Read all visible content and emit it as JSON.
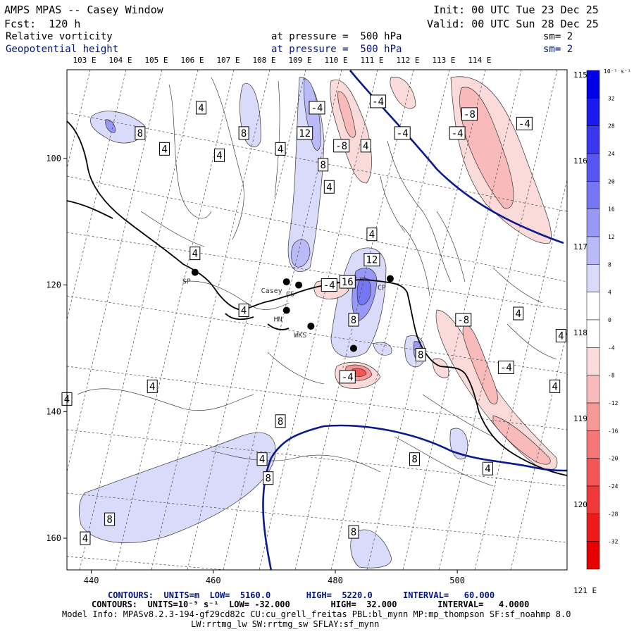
{
  "header": {
    "model_title": "AMPS MPAS -- Casey Window",
    "forecast": "Fcst:  120 h",
    "init": "Init: 00 UTC Tue 23 Dec 25",
    "valid": "Valid: 00 UTC Sun 28 Dec 25",
    "field1": {
      "name": "Relative vorticity",
      "level": "at pressure =  500 hPa",
      "smooth": "sm= 2"
    },
    "field2": {
      "name": "Geopotential height",
      "level": "at pressure =  500 hPa",
      "smooth": "sm= 2"
    }
  },
  "colors": {
    "blue_text": "#00137f",
    "height_contour": "#0a1a8c",
    "coast": "#000000"
  },
  "chart_data": {
    "type": "map-contour",
    "x_axis": {
      "ticks": [
        "440",
        "460",
        "480",
        "500"
      ],
      "range": [
        436,
        518
      ]
    },
    "y_axis": {
      "ticks": [
        "100",
        "120",
        "140",
        "160"
      ],
      "range": [
        86,
        165
      ]
    },
    "lon_labels_top": [
      "103 E",
      "104 E",
      "105 E",
      "106 E",
      "107 E",
      "108 E",
      "109 E",
      "110 E",
      "111 E",
      "112 E",
      "113 E",
      "114 E"
    ],
    "lon_labels_right": [
      "115 E",
      "116 E",
      "117 E",
      "118 E",
      "119 E",
      "120 E",
      "121 E"
    ],
    "colorbar": {
      "units_label": "10⁻⁵ s⁻¹",
      "levels": [
        36,
        32,
        28,
        24,
        20,
        16,
        12,
        8,
        4,
        0,
        -4,
        -8,
        -12,
        -16,
        -20,
        -24,
        -28,
        -32,
        -36
      ],
      "tick_labels": [
        "32",
        "28",
        "24",
        "20",
        "16",
        "12",
        "8",
        "4",
        "0",
        "-4",
        "-8",
        "-12",
        "-16",
        "-20",
        "-24",
        "-28",
        "-32"
      ],
      "colors": [
        "#0000e8",
        "#1a1aee",
        "#3838f0",
        "#5656f2",
        "#7676f4",
        "#9898f6",
        "#babaf8",
        "#dadafb",
        "#ffffff",
        "#ffffff",
        "#fbdada",
        "#f8baba",
        "#f69898",
        "#f47676",
        "#f25656",
        "#f03838",
        "#ee1a1a",
        "#e80000"
      ]
    },
    "stations": [
      {
        "name": "SP",
        "x": 457,
        "y": 118
      },
      {
        "name": "Casey",
        "x": 472,
        "y": 119.5
      },
      {
        "name": "CS",
        "x": 474,
        "y": 120
      },
      {
        "name": "HN",
        "x": 472,
        "y": 124
      },
      {
        "name": "WKS",
        "x": 476,
        "y": 126.5
      },
      {
        "name": "CP",
        "x": 489,
        "y": 119
      },
      {
        "name": "",
        "x": 483,
        "y": 130
      }
    ],
    "contour_labels": [
      {
        "text": "8",
        "x": 448,
        "y": 96
      },
      {
        "text": "4",
        "x": 452,
        "y": 98.5
      },
      {
        "text": "4",
        "x": 458,
        "y": 92
      },
      {
        "text": "4",
        "x": 461,
        "y": 99.5
      },
      {
        "text": "8",
        "x": 465,
        "y": 96
      },
      {
        "text": "4",
        "x": 471,
        "y": 98.5
      },
      {
        "text": "12",
        "x": 475,
        "y": 96
      },
      {
        "text": "-4",
        "x": 477,
        "y": 92
      },
      {
        "text": "8",
        "x": 478,
        "y": 101
      },
      {
        "text": "-8",
        "x": 481,
        "y": 98
      },
      {
        "text": "4",
        "x": 485,
        "y": 98
      },
      {
        "text": "-4",
        "x": 487,
        "y": 91
      },
      {
        "text": "-4",
        "x": 491,
        "y": 96
      },
      {
        "text": "-8",
        "x": 502,
        "y": 93
      },
      {
        "text": "-4",
        "x": 500,
        "y": 96
      },
      {
        "text": "-4",
        "x": 511,
        "y": 94.5
      },
      {
        "text": "4",
        "x": 479,
        "y": 104.5
      },
      {
        "text": "4",
        "x": 486,
        "y": 112
      },
      {
        "text": "12",
        "x": 486,
        "y": 116
      },
      {
        "text": "4",
        "x": 457,
        "y": 115
      },
      {
        "text": "-4",
        "x": 479,
        "y": 120
      },
      {
        "text": "16",
        "x": 482,
        "y": 119.5
      },
      {
        "text": "4",
        "x": 465,
        "y": 124
      },
      {
        "text": "8",
        "x": 483,
        "y": 125.5
      },
      {
        "text": "8",
        "x": 494,
        "y": 131
      },
      {
        "text": "-4",
        "x": 482,
        "y": 134.5
      },
      {
        "text": "-8",
        "x": 501,
        "y": 125.5
      },
      {
        "text": "4",
        "x": 510,
        "y": 124.5
      },
      {
        "text": "4",
        "x": 517,
        "y": 128
      },
      {
        "text": "-4",
        "x": 508,
        "y": 133
      },
      {
        "text": "4",
        "x": 516,
        "y": 136
      },
      {
        "text": "4",
        "x": 436,
        "y": 138
      },
      {
        "text": "4",
        "x": 450,
        "y": 136
      },
      {
        "text": "8",
        "x": 471,
        "y": 141.5
      },
      {
        "text": "4",
        "x": 468,
        "y": 147.5
      },
      {
        "text": "8",
        "x": 469,
        "y": 150.5
      },
      {
        "text": "8",
        "x": 493,
        "y": 147.5
      },
      {
        "text": "4",
        "x": 505,
        "y": 149
      },
      {
        "text": "8",
        "x": 443,
        "y": 157
      },
      {
        "text": "4",
        "x": 439,
        "y": 160
      },
      {
        "text": "8",
        "x": 483,
        "y": 159
      }
    ]
  },
  "footer": {
    "line1": "CONTOURS:  UNITS=m  LOW=  5160.0       HIGH=  5220.0      INTERVAL=   60.000",
    "line2": "CONTOURS:  UNITS=10⁻⁵ s⁻¹  LOW= -32.000        HIGH=  32.000        INTERVAL=   4.0000",
    "line3": "Model Info: MPASv8.2.3-194-gf29cd82c CU:cu_grell_freitas PBL:bl_mynn MP:mp_thompson SF:sf_noahmp 8.0",
    "line4": "LW:rrtmg_lw SW:rrtmg_sw SFLAY:sf_mynn"
  }
}
